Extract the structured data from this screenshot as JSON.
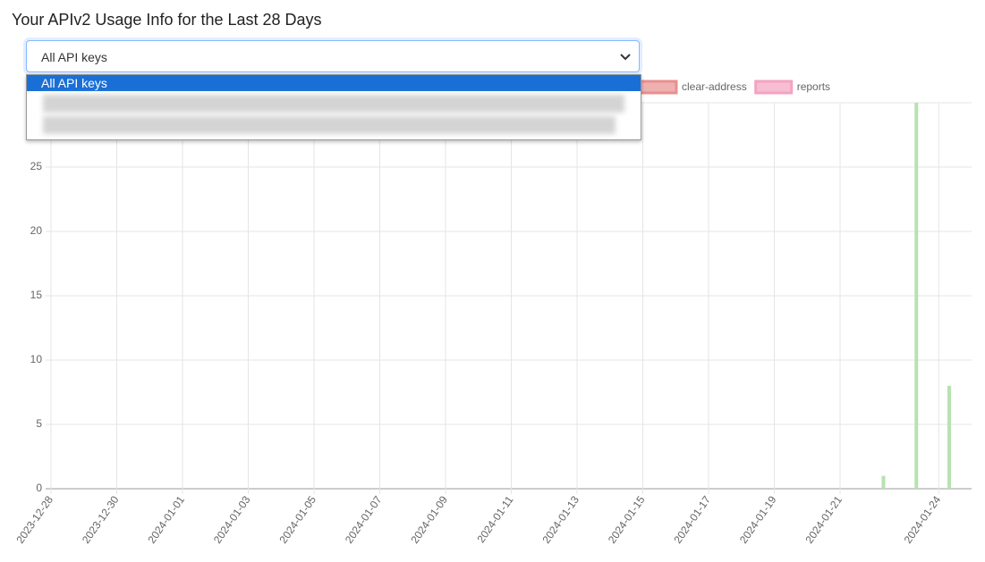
{
  "header": {
    "title": "Your APIv2 Usage Info for the Last 28 Days"
  },
  "dropdown": {
    "selected": "All API keys",
    "options": [
      "All API keys"
    ]
  },
  "chart_data": {
    "type": "bar",
    "x": [
      "2024-01-22",
      "2024-01-23",
      "2024-01-24"
    ],
    "series": [
      {
        "color": "#b7e2b1",
        "values": [
          1,
          30,
          8
        ]
      },
      {
        "name": "clear-address",
        "color": "#e88f8f",
        "values": [
          0,
          0,
          0
        ]
      },
      {
        "name": "reports",
        "color": "#f4a3c0",
        "values": [
          0,
          0,
          0
        ]
      }
    ],
    "ylim": [
      0,
      30
    ],
    "yticks": [
      0,
      5,
      10,
      15,
      20,
      25
    ],
    "xticks": [
      "2023-12-28",
      "2023-12-30",
      "2024-01-01",
      "2024-01-03",
      "2024-01-05",
      "2024-01-07",
      "2024-01-09",
      "2024-01-11",
      "2024-01-13",
      "2024-01-15",
      "2024-01-17",
      "2024-01-19",
      "2024-01-21",
      "2024-01-24"
    ],
    "grid": true
  }
}
